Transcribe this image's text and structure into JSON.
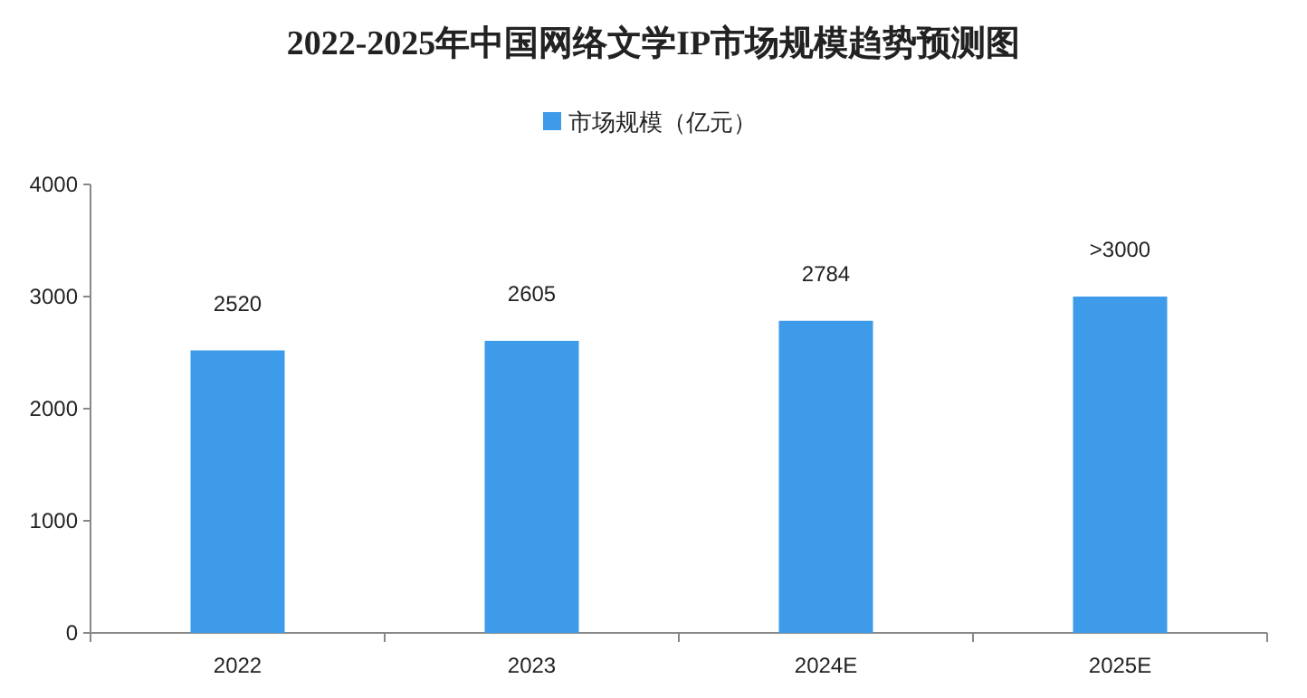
{
  "chart_data": {
    "type": "bar",
    "title": "2022-2025年中国网络文学IP市场规模趋势预测图",
    "categories": [
      "2022",
      "2023",
      "2024E",
      "2025E"
    ],
    "series": [
      {
        "name": "市场规模（亿元）",
        "color": "#3d9be9",
        "values": [
          2520,
          2605,
          2784,
          3000
        ],
        "value_labels": [
          "2520",
          "2605",
          "2784",
          ">3000"
        ]
      }
    ],
    "ylim": [
      0,
      4000
    ],
    "yticks": [
      0,
      1000,
      2000,
      3000,
      4000
    ],
    "legend": "top",
    "grid": false
  }
}
